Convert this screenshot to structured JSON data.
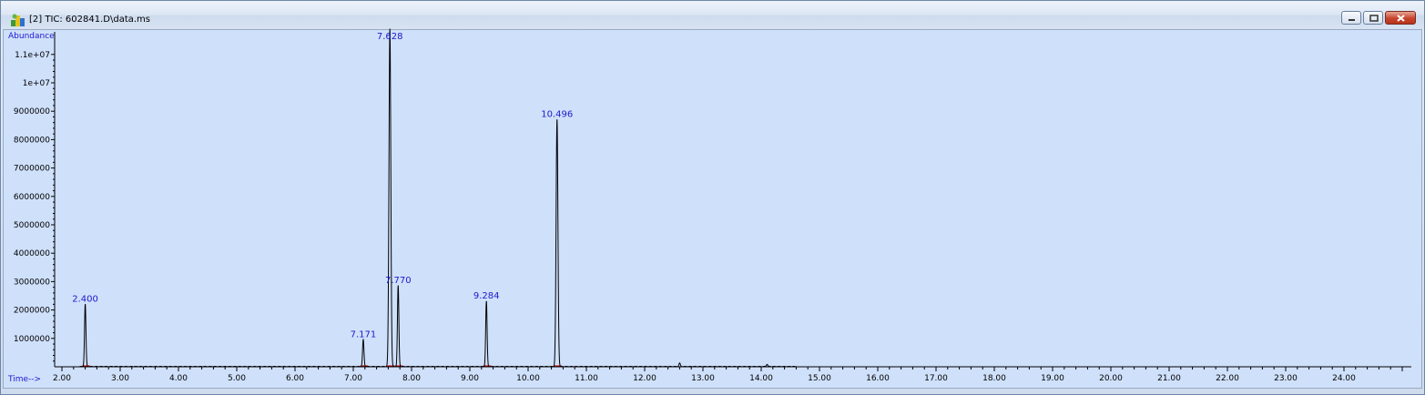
{
  "window": {
    "title": "[2] TIC: 602841.D\\data.ms",
    "icon": "chromatogram-app-icon"
  },
  "chart_data": {
    "type": "line",
    "xlabel": "Time-->",
    "ylabel": "Abundance",
    "xlim": [
      1.9,
      25.0
    ],
    "ylim": [
      0,
      11900000
    ],
    "x_ticks": [
      2.0,
      3.0,
      4.0,
      5.0,
      6.0,
      7.0,
      8.0,
      9.0,
      10.0,
      11.0,
      12.0,
      13.0,
      14.0,
      15.0,
      16.0,
      17.0,
      18.0,
      19.0,
      20.0,
      21.0,
      22.0,
      23.0,
      24.0
    ],
    "x_tick_labels": [
      "2.00",
      "3.00",
      "4.00",
      "5.00",
      "6.00",
      "7.00",
      "8.00",
      "9.00",
      "10.00",
      "11.00",
      "12.00",
      "13.00",
      "14.00",
      "15.00",
      "16.00",
      "17.00",
      "18.00",
      "19.00",
      "20.00",
      "21.00",
      "22.00",
      "23.00",
      "24.00"
    ],
    "y_ticks": [
      1000000,
      2000000,
      3000000,
      4000000,
      5000000,
      6000000,
      7000000,
      8000000,
      9000000,
      10000000,
      11000000
    ],
    "y_tick_labels": [
      "1000000",
      "2000000",
      "3000000",
      "4000000",
      "5000000",
      "6000000",
      "7000000",
      "8000000",
      "9000000",
      "1e+07",
      "1.1e+07"
    ],
    "peaks": [
      {
        "rt": 2.4,
        "label": "2.400",
        "height": 2200000
      },
      {
        "rt": 7.171,
        "label": "7.171",
        "height": 950000
      },
      {
        "rt": 7.628,
        "label": "7.628",
        "height": 11900000
      },
      {
        "rt": 7.77,
        "label": "7.770",
        "height": 2850000
      },
      {
        "rt": 9.284,
        "label": "9.284",
        "height": 2300000
      },
      {
        "rt": 10.496,
        "label": "10.496",
        "height": 8700000
      }
    ],
    "minor_peaks": [
      {
        "rt": 12.6,
        "height": 120000
      },
      {
        "rt": 14.1,
        "height": 80000
      }
    ],
    "grid": false,
    "colors": {
      "trace": "#000000",
      "labels": "#1a1acc",
      "baseline": "#cc0000",
      "background": "#cfe0fb"
    }
  }
}
